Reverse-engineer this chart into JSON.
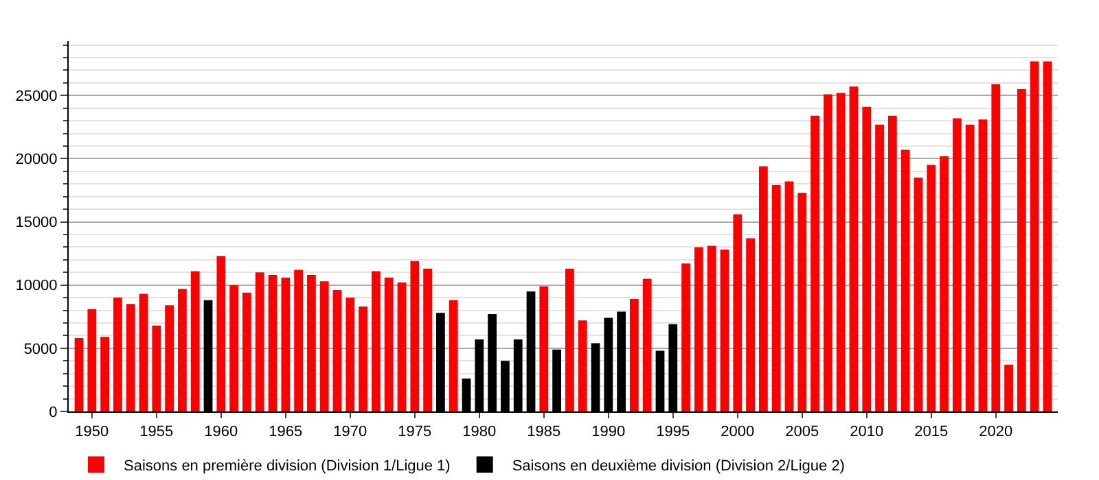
{
  "chart_data": {
    "type": "bar",
    "x": [
      1949,
      1950,
      1951,
      1952,
      1953,
      1954,
      1955,
      1956,
      1957,
      1958,
      1959,
      1960,
      1961,
      1962,
      1963,
      1964,
      1965,
      1966,
      1967,
      1968,
      1969,
      1970,
      1971,
      1972,
      1973,
      1974,
      1975,
      1976,
      1977,
      1978,
      1979,
      1980,
      1981,
      1982,
      1983,
      1984,
      1985,
      1986,
      1987,
      1988,
      1989,
      1990,
      1991,
      1992,
      1993,
      1994,
      1995,
      1996,
      1997,
      1998,
      1999,
      2000,
      2001,
      2002,
      2003,
      2004,
      2005,
      2006,
      2007,
      2008,
      2009,
      2010,
      2011,
      2012,
      2013,
      2014,
      2015,
      2016,
      2017,
      2018,
      2019,
      2020,
      2021,
      2022,
      2023,
      2024
    ],
    "series": [
      {
        "name": "Saisons en première division (Division 1/Ligue 1)",
        "color": "#ff0000",
        "values": [
          5800,
          8100,
          5900,
          9000,
          8500,
          9300,
          6800,
          8400,
          9700,
          11100,
          null,
          12300,
          10000,
          9400,
          11000,
          10800,
          10600,
          11200,
          10800,
          10300,
          9600,
          9000,
          8300,
          11100,
          10600,
          10200,
          11900,
          11300,
          null,
          8800,
          null,
          null,
          null,
          null,
          null,
          null,
          9900,
          null,
          11300,
          7200,
          null,
          null,
          null,
          8900,
          10500,
          null,
          null,
          11700,
          13000,
          13100,
          12800,
          15600,
          13700,
          19400,
          17900,
          18200,
          17300,
          23400,
          25100,
          25200,
          25700,
          24100,
          22700,
          23400,
          20700,
          18500,
          19500,
          20200,
          23200,
          22700,
          23100,
          25900,
          3700,
          25500,
          27700,
          27700
        ]
      },
      {
        "name": "Saisons en deuxième division (Division 2/Ligue 2)",
        "color": "#000000",
        "values": [
          null,
          null,
          null,
          null,
          null,
          null,
          null,
          null,
          null,
          null,
          8800,
          null,
          null,
          null,
          null,
          null,
          null,
          null,
          null,
          null,
          null,
          null,
          null,
          null,
          null,
          null,
          null,
          null,
          7800,
          null,
          2600,
          5700,
          7700,
          4000,
          5700,
          9500,
          null,
          4900,
          null,
          null,
          5400,
          7400,
          7900,
          null,
          null,
          4800,
          6900,
          null,
          null,
          null,
          null,
          null,
          null,
          null,
          null,
          null,
          null,
          null,
          null,
          null,
          null,
          null,
          null,
          null,
          null,
          null,
          null,
          null,
          null,
          null,
          null,
          null,
          null,
          null,
          null,
          null
        ]
      }
    ],
    "xlim": [
      1948.2,
      2024.8
    ],
    "xticks": [
      1950,
      1955,
      1960,
      1965,
      1970,
      1975,
      1980,
      1985,
      1990,
      1995,
      2000,
      2005,
      2010,
      2015,
      2020
    ],
    "ylim": [
      0,
      29300
    ],
    "yticks": [
      0,
      {
        "value": 1000,
        "label": null
      },
      {
        "value": 2000,
        "label": null
      },
      {
        "value": 3000,
        "label": null
      },
      {
        "value": 4000,
        "label": null
      },
      5000,
      {
        "value": 6000,
        "label": null
      },
      {
        "value": 7000,
        "label": null
      },
      {
        "value": 8000,
        "label": null
      },
      {
        "value": 9000,
        "label": null
      },
      10000,
      {
        "value": 11000,
        "label": null
      },
      {
        "value": 12000,
        "label": null
      },
      {
        "value": 13000,
        "label": null
      },
      {
        "value": 14000,
        "label": null
      },
      15000,
      {
        "value": 16000,
        "label": null
      },
      {
        "value": 17000,
        "label": null
      },
      {
        "value": 18000,
        "label": null
      },
      {
        "value": 19000,
        "label": null
      },
      20000,
      {
        "value": 21000,
        "label": null
      },
      {
        "value": 22000,
        "label": null
      },
      {
        "value": 23000,
        "label": null
      },
      {
        "value": 24000,
        "label": null
      },
      25000,
      {
        "value": 26000,
        "label": null
      },
      {
        "value": 27000,
        "label": null
      },
      {
        "value": 28000,
        "label": null
      },
      {
        "value": 29000,
        "label": null
      }
    ],
    "grid": "y",
    "legend": "bottom left"
  }
}
